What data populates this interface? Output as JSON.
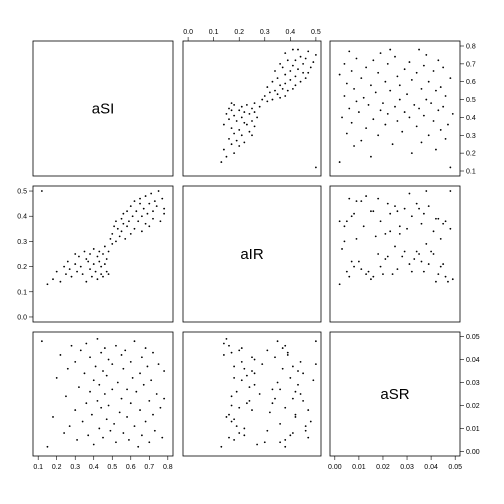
{
  "chart_data": {
    "type": "scatter",
    "title": "",
    "variables": [
      {
        "name": "aSI",
        "axis": {
          "min": 0.1,
          "max": 0.8,
          "ticks": [
            0.1,
            0.2,
            0.3,
            0.4,
            0.5,
            0.6,
            0.7,
            0.8
          ]
        }
      },
      {
        "name": "aIR",
        "axis": {
          "min": 0.0,
          "max": 0.5,
          "ticks": [
            0.0,
            0.1,
            0.2,
            0.3,
            0.4,
            0.5
          ]
        }
      },
      {
        "name": "aSR",
        "axis": {
          "min": 0.0,
          "max": 0.05,
          "ticks": [
            0.0,
            0.01,
            0.02,
            0.03,
            0.04,
            0.05
          ]
        }
      }
    ],
    "tick_labels": {
      "aSI": [
        "0.1",
        "0.2",
        "0.3",
        "0.4",
        "0.5",
        "0.6",
        "0.7",
        "0.8"
      ],
      "aIR": [
        "0.0",
        "0.1",
        "0.2",
        "0.3",
        "0.4",
        "0.5"
      ],
      "aSR": [
        "0.00",
        "0.01",
        "0.02",
        "0.03",
        "0.04",
        "0.05"
      ]
    },
    "axis_placement": {
      "aSI": {
        "x_axis": "bottom",
        "y_axis": "right"
      },
      "aIR": {
        "x_axis": "top",
        "y_axis": "left"
      },
      "aSR": {
        "x_axis": "bottom",
        "y_axis": "right"
      }
    },
    "grid": false,
    "points": {
      "aSI": [
        0.12,
        0.15,
        0.18,
        0.2,
        0.22,
        0.24,
        0.25,
        0.26,
        0.27,
        0.28,
        0.3,
        0.3,
        0.31,
        0.32,
        0.33,
        0.34,
        0.35,
        0.36,
        0.36,
        0.37,
        0.38,
        0.38,
        0.39,
        0.4,
        0.4,
        0.41,
        0.42,
        0.42,
        0.43,
        0.43,
        0.44,
        0.44,
        0.45,
        0.45,
        0.46,
        0.46,
        0.47,
        0.47,
        0.48,
        0.48,
        0.49,
        0.5,
        0.5,
        0.51,
        0.52,
        0.52,
        0.53,
        0.54,
        0.55,
        0.55,
        0.56,
        0.56,
        0.57,
        0.58,
        0.58,
        0.59,
        0.6,
        0.6,
        0.61,
        0.62,
        0.62,
        0.63,
        0.64,
        0.65,
        0.65,
        0.66,
        0.66,
        0.67,
        0.68,
        0.68,
        0.69,
        0.7,
        0.7,
        0.71,
        0.72,
        0.72,
        0.73,
        0.74,
        0.75,
        0.76,
        0.77,
        0.78,
        0.78
      ],
      "aIR": [
        0.5,
        0.13,
        0.15,
        0.18,
        0.14,
        0.2,
        0.17,
        0.22,
        0.19,
        0.16,
        0.25,
        0.21,
        0.18,
        0.24,
        0.2,
        0.17,
        0.26,
        0.23,
        0.14,
        0.22,
        0.19,
        0.25,
        0.16,
        0.21,
        0.27,
        0.18,
        0.24,
        0.15,
        0.22,
        0.26,
        0.17,
        0.2,
        0.25,
        0.16,
        0.28,
        0.21,
        0.18,
        0.23,
        0.26,
        0.17,
        0.31,
        0.29,
        0.33,
        0.36,
        0.38,
        0.3,
        0.35,
        0.32,
        0.39,
        0.34,
        0.37,
        0.41,
        0.31,
        0.42,
        0.36,
        0.38,
        0.44,
        0.33,
        0.4,
        0.46,
        0.35,
        0.42,
        0.38,
        0.45,
        0.47,
        0.34,
        0.4,
        0.43,
        0.37,
        0.48,
        0.41,
        0.45,
        0.36,
        0.49,
        0.42,
        0.39,
        0.46,
        0.44,
        0.5,
        0.38,
        0.47,
        0.43,
        0.41
      ],
      "aSR": [
        0.048,
        0.002,
        0.015,
        0.032,
        0.042,
        0.008,
        0.024,
        0.036,
        0.011,
        0.046,
        0.018,
        0.039,
        0.005,
        0.028,
        0.044,
        0.013,
        0.034,
        0.021,
        0.047,
        0.007,
        0.026,
        0.041,
        0.016,
        0.031,
        0.003,
        0.037,
        0.022,
        0.049,
        0.01,
        0.029,
        0.043,
        0.019,
        0.035,
        0.006,
        0.025,
        0.045,
        0.014,
        0.033,
        0.04,
        0.02,
        0.009,
        0.038,
        0.027,
        0.012,
        0.046,
        0.004,
        0.03,
        0.017,
        0.042,
        0.023,
        0.036,
        0.008,
        0.044,
        0.015,
        0.027,
        0.005,
        0.039,
        0.021,
        0.032,
        0.011,
        0.048,
        0.026,
        0.002,
        0.034,
        0.018,
        0.041,
        0.007,
        0.029,
        0.045,
        0.013,
        0.037,
        0.022,
        0.004,
        0.031,
        0.016,
        0.043,
        0.009,
        0.025,
        0.038,
        0.019,
        0.006,
        0.035,
        0.023
      ]
    }
  }
}
